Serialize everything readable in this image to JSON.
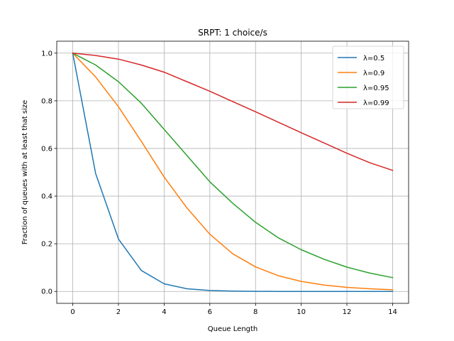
{
  "chart_data": {
    "type": "line",
    "title": "SRPT: 1 choice/s",
    "xlabel": "Queue Length",
    "ylabel": "Fraction of queues with at least that size",
    "xlim": [
      -0.7,
      14.7
    ],
    "ylim": [
      -0.05,
      1.05
    ],
    "xticks": [
      0,
      2,
      4,
      6,
      8,
      10,
      12,
      14
    ],
    "yticks": [
      0.0,
      0.2,
      0.4,
      0.6,
      0.8,
      1.0
    ],
    "xtick_labels": [
      "0",
      "2",
      "4",
      "6",
      "8",
      "10",
      "12",
      "14"
    ],
    "ytick_labels": [
      "0.0",
      "0.2",
      "0.4",
      "0.6",
      "0.8",
      "1.0"
    ],
    "grid": true,
    "legend_position": "top-right",
    "x": [
      0,
      1,
      2,
      3,
      4,
      5,
      6,
      7,
      8,
      9,
      10,
      11,
      12,
      13,
      14
    ],
    "series": [
      {
        "name": "λ=0.5",
        "color": "#1f77b4",
        "values": [
          1.0,
          0.495,
          0.22,
          0.088,
          0.032,
          0.011,
          0.004,
          0.0015,
          0.0005,
          0.0002,
          0.0001,
          0.0,
          0.0,
          0.0,
          0.0
        ]
      },
      {
        "name": "λ=0.9",
        "color": "#ff7f0e",
        "values": [
          1.0,
          0.9,
          0.775,
          0.63,
          0.48,
          0.35,
          0.24,
          0.158,
          0.103,
          0.066,
          0.042,
          0.027,
          0.017,
          0.011,
          0.007
        ]
      },
      {
        "name": "λ=0.95",
        "color": "#2ca02c",
        "values": [
          1.0,
          0.95,
          0.88,
          0.79,
          0.68,
          0.57,
          0.46,
          0.37,
          0.29,
          0.225,
          0.175,
          0.135,
          0.102,
          0.077,
          0.058
        ]
      },
      {
        "name": "λ=0.99",
        "color": "#d62728",
        "values": [
          1.0,
          0.99,
          0.975,
          0.95,
          0.92,
          0.88,
          0.84,
          0.797,
          0.754,
          0.71,
          0.666,
          0.623,
          0.58,
          0.54,
          0.508
        ]
      }
    ]
  }
}
